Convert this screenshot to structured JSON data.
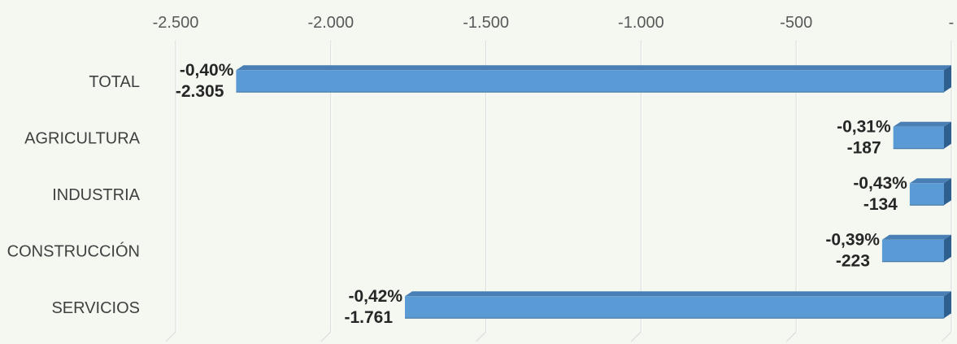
{
  "chart_data": {
    "type": "bar",
    "orientation": "horizontal",
    "categories": [
      "TOTAL",
      "AGRICULTURA",
      "INDUSTRIA",
      "CONSTRUCCIÓN",
      "SERVICIOS"
    ],
    "values": [
      -2305,
      -187,
      -134,
      -223,
      -1761
    ],
    "value_labels": [
      "-2.305",
      "-187",
      "-134",
      "-223",
      "-1.761"
    ],
    "percent_labels": [
      "-0,40%",
      "-0,31%",
      "-0,43%",
      "-0,39%",
      "-0,42%"
    ],
    "x_ticks": [
      -2500,
      -2000,
      -1500,
      -1000,
      -500,
      0
    ],
    "x_tick_labels": [
      "-2.500",
      "-2.000",
      "-1.500",
      "-1.000",
      "-500",
      "-"
    ],
    "xlim": [
      -2500,
      0
    ],
    "x_axis_position": "top",
    "grid": true,
    "bar_color": "#5b9bd5",
    "bar_top_color": "#4a7fb5",
    "bar_side_color": "#2f5f8f",
    "title": "",
    "xlabel": "",
    "ylabel": ""
  }
}
